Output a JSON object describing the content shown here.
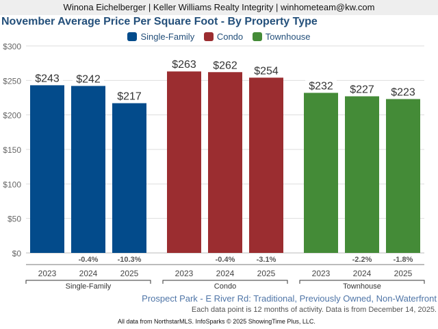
{
  "header": {
    "agent_line": "Winona Eichelberger | Keller Williams Realty Integrity | winhometeam@kw.com"
  },
  "chart_data": {
    "type": "bar",
    "title": "November Average Price Per Square Foot - By Property Type",
    "xlabel": "",
    "ylabel": "",
    "ylim": [
      0,
      300
    ],
    "yticks": [
      0,
      50,
      100,
      150,
      200,
      250,
      300
    ],
    "ytick_labels": [
      "$0",
      "$50",
      "$100",
      "$150",
      "$200",
      "$250",
      "$300"
    ],
    "grid": true,
    "legend_position": "top-center",
    "legend": [
      {
        "name": "Single-Family",
        "color": "#034b8b"
      },
      {
        "name": "Condo",
        "color": "#9b2d30"
      },
      {
        "name": "Townhouse",
        "color": "#448b37"
      }
    ],
    "groups": [
      {
        "name": "Single-Family",
        "color": "#034b8b",
        "categories": [
          "2023",
          "2024",
          "2025"
        ],
        "values": [
          243,
          242,
          217
        ],
        "value_labels": [
          "$243",
          "$242",
          "$217"
        ],
        "pct_change": [
          "",
          "-0.4%",
          "-10.3%"
        ]
      },
      {
        "name": "Condo",
        "color": "#9b2d30",
        "categories": [
          "2023",
          "2024",
          "2025"
        ],
        "values": [
          263,
          262,
          254
        ],
        "value_labels": [
          "$263",
          "$262",
          "$254"
        ],
        "pct_change": [
          "",
          "-0.4%",
          "-3.1%"
        ]
      },
      {
        "name": "Townhouse",
        "color": "#448b37",
        "categories": [
          "2023",
          "2024",
          "2025"
        ],
        "values": [
          232,
          227,
          223
        ],
        "value_labels": [
          "$232",
          "$227",
          "$223"
        ],
        "pct_change": [
          "",
          "-2.2%",
          "-1.8%"
        ]
      }
    ]
  },
  "subtitle": "Prospect Park - E River Rd: Traditional, Previously Owned, Non-Waterfront",
  "note": "Each data point is 12 months of activity. Data is from December 14, 2025.",
  "footer": "All data from NorthstarMLS. InfoSparks © 2025 ShowingTime Plus, LLC."
}
